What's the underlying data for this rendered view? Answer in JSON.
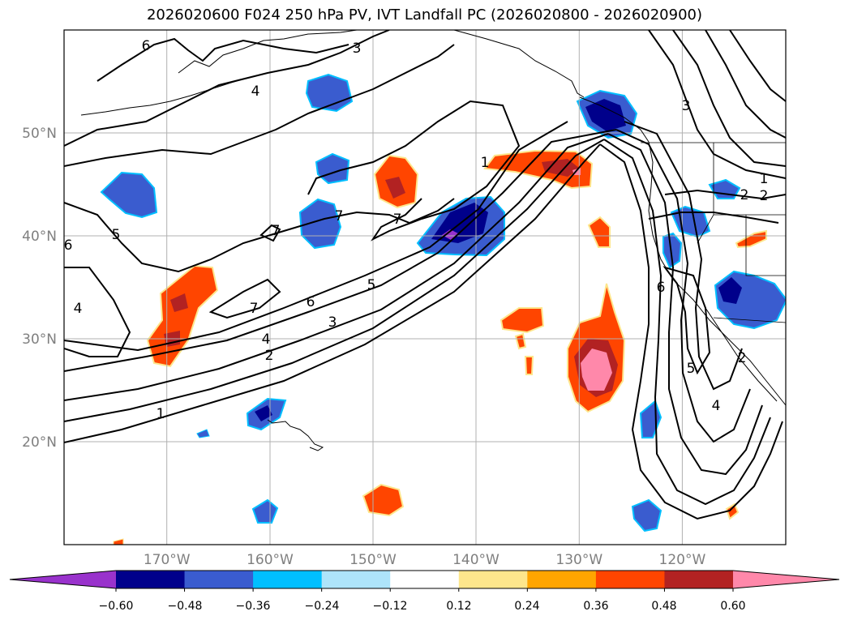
{
  "title": "2026020600 F024 250 hPa PV, IVT Landfall PC (2026020800 - 2026020900)",
  "lat_labels": [
    "50°N",
    "40°N",
    "30°N",
    "20°N"
  ],
  "lon_labels": [
    "170°W",
    "160°W",
    "150°W",
    "140°W",
    "130°W",
    "120°W"
  ],
  "colorbar": {
    "tick_labels": [
      "−0.60",
      "−0.48",
      "−0.36",
      "−0.24",
      "−0.12",
      "0.12",
      "0.24",
      "0.36",
      "0.48",
      "0.60"
    ],
    "colors": [
      "#9932cc",
      "#00008b",
      "#3a5ccf",
      "#00bfff",
      "#aee4fa",
      "#ffffff",
      "#fde68c",
      "#ffa500",
      "#ff4500",
      "#b22222",
      "#ff88aa"
    ]
  },
  "contour_labels": [
    "6",
    "3",
    "4",
    "1",
    "2",
    "7",
    "5",
    "6",
    "5",
    "3",
    "4",
    "2",
    "1",
    "7",
    "7",
    "7",
    "1",
    "2",
    "3",
    "4",
    "5",
    "6",
    "4",
    "6",
    "5",
    "4",
    "2"
  ],
  "map": {
    "projection": "PlateCarree",
    "lon_range": [
      -180,
      -110
    ],
    "lat_range": [
      10,
      60
    ],
    "gridlines": true
  }
}
